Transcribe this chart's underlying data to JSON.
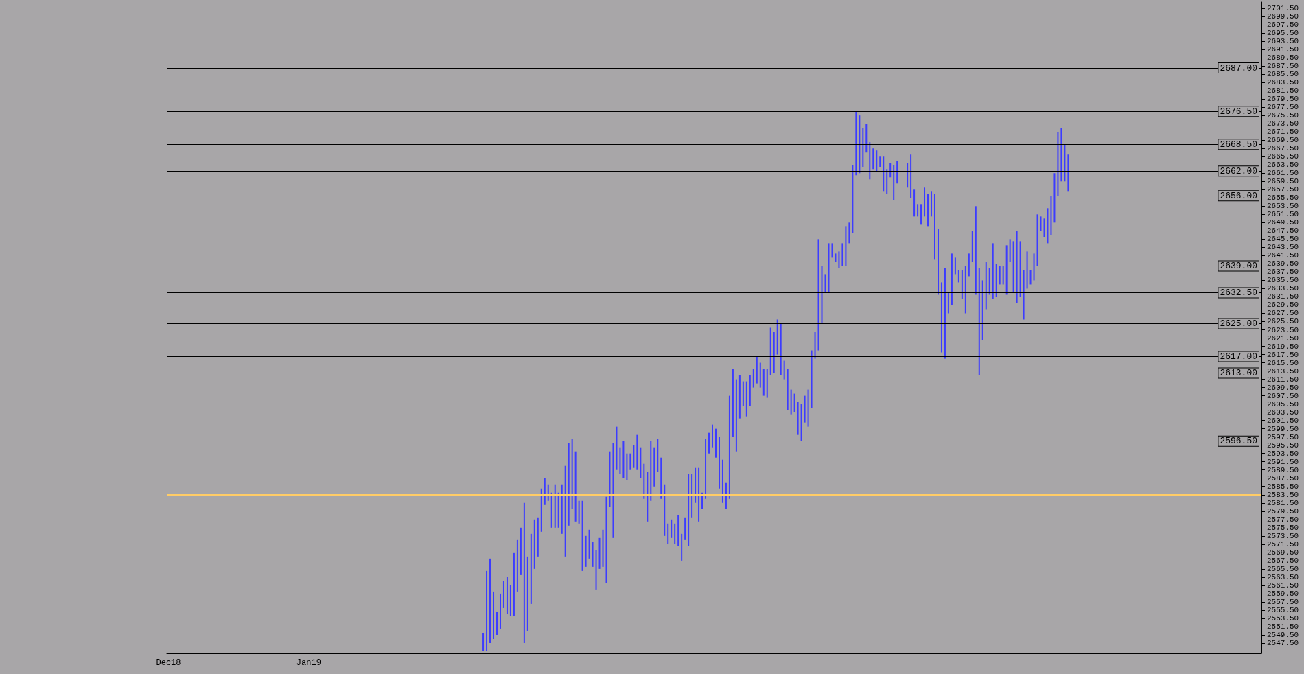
{
  "chart_data": {
    "type": "bar",
    "categories": [
      "Dec18",
      null,
      null,
      null,
      null,
      null,
      null,
      null,
      null,
      null,
      null,
      null,
      null,
      null,
      null,
      null,
      null,
      null,
      null,
      null,
      null,
      null,
      null,
      null,
      null,
      null,
      null,
      null,
      null,
      null,
      null,
      null,
      null,
      null,
      null,
      null,
      null,
      null,
      null,
      null,
      null,
      "Jan19",
      null,
      null,
      null,
      null,
      null,
      null,
      null,
      null,
      null,
      null,
      null,
      null,
      null,
      null,
      null,
      null,
      null,
      null,
      null,
      null,
      null,
      null,
      null,
      null,
      null,
      null,
      null,
      null,
      null,
      null,
      null,
      null,
      null,
      null,
      null,
      null,
      null,
      null,
      null,
      null,
      null,
      null,
      null,
      null,
      null,
      null,
      null,
      null,
      null,
      null,
      null,
      null,
      null,
      null,
      null,
      null,
      null,
      null,
      null,
      null,
      null,
      null,
      null,
      null,
      null,
      null,
      null,
      null,
      null,
      null,
      null,
      null,
      null,
      null,
      null,
      null,
      null,
      null,
      null,
      null,
      null,
      null,
      null,
      null,
      null,
      null,
      null,
      null,
      null,
      null,
      null,
      null,
      null,
      null,
      null,
      null,
      null,
      null,
      null,
      null,
      null,
      null,
      null,
      null,
      null,
      null,
      null,
      null,
      null,
      null,
      null,
      null,
      null,
      null,
      null,
      null,
      null,
      null,
      null,
      null,
      null,
      null,
      null,
      null,
      null,
      null,
      null,
      null,
      null,
      null,
      null,
      null,
      null,
      null,
      null,
      null,
      null,
      null,
      null,
      null,
      null,
      null,
      null,
      null,
      null,
      null,
      null,
      null,
      null,
      null,
      null,
      null,
      null,
      null,
      null,
      null,
      null,
      null,
      null,
      null,
      null,
      null,
      null,
      null,
      null,
      null,
      null,
      null,
      null,
      null,
      null,
      null,
      null,
      null,
      null,
      null,
      null,
      null,
      null,
      null,
      null,
      null,
      null,
      null,
      null,
      null,
      null,
      null,
      null,
      null,
      null,
      null,
      null,
      null,
      null,
      null,
      null,
      null,
      null,
      null,
      null,
      null,
      null,
      null,
      null,
      null,
      null,
      null,
      null,
      null,
      null,
      null,
      null,
      null,
      null,
      null,
      null,
      null,
      null,
      null,
      null,
      null,
      null,
      null,
      null,
      null,
      null,
      null,
      null,
      null,
      null,
      null,
      null,
      null,
      null,
      null,
      null,
      null,
      null,
      null,
      null,
      null,
      null,
      null,
      null,
      null,
      null,
      null,
      null,
      null,
      null,
      null,
      null,
      null,
      null,
      null,
      null,
      null,
      null,
      null,
      null,
      null,
      null,
      null,
      null,
      null,
      null,
      null,
      null,
      null,
      null,
      null,
      null,
      null,
      null,
      null,
      null,
      null
    ],
    "base": [
      null,
      null,
      null,
      null,
      null,
      null,
      null,
      null,
      null,
      null,
      null,
      null,
      null,
      null,
      null,
      null,
      null,
      null,
      null,
      null,
      null,
      null,
      null,
      null,
      null,
      null,
      null,
      null,
      null,
      null,
      null,
      null,
      null,
      null,
      null,
      null,
      null,
      null,
      null,
      null,
      null,
      null,
      null,
      null,
      null,
      null,
      null,
      null,
      null,
      null,
      null,
      null,
      null,
      null,
      null,
      null,
      null,
      null,
      null,
      null,
      null,
      null,
      null,
      null,
      null,
      null,
      null,
      null,
      null,
      null,
      null,
      null,
      null,
      null,
      null,
      null,
      null,
      null,
      null,
      null,
      null,
      null,
      null,
      null,
      null,
      null,
      null,
      null,
      null,
      null,
      null,
      null,
      2545.5,
      2545.5,
      2547.5,
      2548.5,
      2549.5,
      2551,
      2556,
      2554.5,
      2554,
      2554,
      2560,
      2564,
      2547.5,
      2550.5,
      2557,
      2565.5,
      2568.5,
      2574.5,
      2581,
      2582,
      2575.5,
      2575.5,
      2575.5,
      2574,
      2568.5,
      2576,
      2580,
      2577,
      2576.5,
      2565,
      2566,
      2568,
      2566,
      2560.5,
      2565.5,
      2566,
      2562,
      2580.5,
      2573,
      2589.5,
      2588.5,
      2587.5,
      2587,
      2589.5,
      2590,
      2589.5,
      2587.5,
      2582.5,
      2577,
      2582,
      2585.5,
      2589,
      2582.5,
      2573.5,
      2571.5,
      2573,
      2571.5,
      2571,
      2567.5,
      2572.5,
      2571,
      2578,
      2581.5,
      2577,
      2580,
      2582.5,
      2593.5,
      2595,
      2592.5,
      2585,
      2581.5,
      2580,
      2582.5,
      2597.5,
      2594,
      2602,
      2605,
      2602.5,
      2605,
      2609.5,
      2610.5,
      2609.5,
      2607.5,
      2607,
      2612.5,
      2613,
      2617.5,
      2612.5,
      2611.5,
      2604,
      2603,
      2603.5,
      2598,
      2596.5,
      2601,
      2600,
      2604.5,
      2616.5,
      2618.5,
      2625,
      2632.5,
      2632.5,
      2641,
      2640,
      2638.5,
      2639,
      2639,
      2644.5,
      2647,
      2661,
      2661.5,
      2663,
      2666.5,
      2660,
      2662.5,
      2662,
      2663,
      2657,
      2656.5,
      2660.5,
      2655,
      2659,
      null,
      null,
      2658,
      2655.5,
      2651,
      2651,
      2649,
      2651,
      2648.5,
      2651,
      2640.5,
      2632,
      2618,
      2616.5,
      2627.5,
      2629.5,
      2637,
      2635,
      2631,
      2627.5,
      2636.5,
      2640,
      2632,
      2612.5,
      2621,
      2628.5,
      2632,
      2631,
      2631.5,
      2634.5,
      2634.5,
      2632,
      2640,
      2632.5,
      2630,
      2631.5,
      2626,
      2633.5,
      2634.5,
      2635.5,
      2639,
      2647.5,
      2646,
      2644.5,
      2646.5,
      2649.5,
      2656,
      2659.5,
      2659.5,
      2657,
      null,
      null,
      null,
      null,
      null,
      null,
      null,
      null,
      null,
      null,
      null,
      null,
      null,
      null,
      null,
      null,
      null,
      null,
      null,
      null,
      null,
      null,
      null,
      null,
      null,
      null,
      null,
      null,
      null,
      null,
      null,
      null,
      null,
      null,
      null,
      null,
      null,
      null,
      null,
      null,
      null,
      null,
      null,
      null,
      null,
      null,
      null,
      null,
      null,
      null,
      null,
      null,
      null,
      null,
      null,
      null
    ],
    "values": [
      null,
      null,
      null,
      null,
      null,
      null,
      null,
      null,
      null,
      null,
      null,
      null,
      null,
      null,
      null,
      null,
      null,
      null,
      null,
      null,
      null,
      null,
      null,
      null,
      null,
      null,
      null,
      null,
      null,
      null,
      null,
      null,
      null,
      null,
      null,
      null,
      null,
      null,
      null,
      null,
      null,
      null,
      null,
      null,
      null,
      null,
      null,
      null,
      null,
      null,
      null,
      null,
      null,
      null,
      null,
      null,
      null,
      null,
      null,
      null,
      null,
      null,
      null,
      null,
      null,
      null,
      null,
      null,
      null,
      null,
      null,
      null,
      null,
      null,
      null,
      null,
      null,
      null,
      null,
      null,
      null,
      null,
      null,
      null,
      null,
      null,
      null,
      null,
      null,
      null,
      null,
      null,
      4.5,
      19.5,
      20.5,
      11.5,
      5.5,
      8.5,
      6.5,
      9,
      7.5,
      15.5,
      12.5,
      11.5,
      34,
      18,
      17,
      12,
      9.5,
      10.5,
      6.5,
      4,
      8.5,
      10.5,
      8.5,
      12,
      22,
      20,
      17,
      17,
      5.5,
      17,
      7.5,
      7,
      6,
      9.5,
      7.5,
      9,
      21,
      13.5,
      23,
      10.5,
      6.5,
      9,
      6.5,
      4,
      5.5,
      8.5,
      7.5,
      8.5,
      12,
      14.5,
      9.5,
      8,
      10,
      12.5,
      5,
      4.5,
      5,
      7.5,
      6.5,
      5.5,
      17.5,
      10.5,
      8.5,
      13,
      4,
      14.5,
      5,
      5.5,
      7,
      12.5,
      10.5,
      6.5,
      25,
      16.5,
      17.5,
      10.5,
      6,
      8.5,
      7.5,
      4.5,
      6.5,
      6,
      6.5,
      7,
      11.5,
      10,
      8.5,
      12.5,
      4.5,
      10,
      6,
      4.5,
      8,
      9,
      6.5,
      9,
      14,
      6.5,
      27,
      14,
      4.5,
      12,
      3.5,
      2,
      4,
      5.5,
      9.5,
      5,
      16.5,
      15.5,
      14,
      9.5,
      7,
      9,
      5,
      5,
      2.5,
      8.5,
      6,
      3.5,
      8.5,
      5.5,
      null,
      null,
      6,
      10.5,
      6.5,
      3,
      5,
      7,
      8,
      6,
      16,
      16,
      17,
      22,
      5,
      12.5,
      4,
      3,
      7,
      11.5,
      5.5,
      7.5,
      21.5,
      26,
      14.5,
      11.5,
      6.5,
      13.5,
      8,
      4.5,
      4.5,
      12,
      5.5,
      12.5,
      17.5,
      13.5,
      12,
      9,
      3.5,
      6.5,
      12.5,
      3.5,
      4.5,
      8.5,
      9.5,
      12,
      15.5,
      13,
      9,
      9,
      null,
      null,
      null,
      null,
      null,
      null,
      null,
      null,
      null,
      null,
      null,
      null,
      null,
      null,
      null,
      null,
      null,
      null,
      null,
      null,
      null,
      null,
      null,
      null,
      null,
      null,
      null,
      null,
      null,
      null,
      null,
      null,
      null,
      null,
      null,
      null,
      null,
      null,
      null,
      null,
      null,
      null,
      null,
      null,
      null,
      null,
      null,
      null,
      null,
      null,
      null,
      null,
      null,
      null,
      null,
      null
    ],
    "color": "#3c3cff",
    "ylim": [
      2545,
      2703
    ],
    "yticks": [
      {
        "value": 2547.5,
        "label": "2547.50"
      },
      {
        "value": 2549.5,
        "label": "2549.50"
      },
      {
        "value": 2551.5,
        "label": "2551.50"
      },
      {
        "value": 2553.5,
        "label": "2553.50"
      },
      {
        "value": 2555.5,
        "label": "2555.50"
      },
      {
        "value": 2557.5,
        "label": "2557.50"
      },
      {
        "value": 2559.5,
        "label": "2559.50"
      },
      {
        "value": 2561.5,
        "label": "2561.50"
      },
      {
        "value": 2563.5,
        "label": "2563.50"
      },
      {
        "value": 2565.5,
        "label": "2565.50"
      },
      {
        "value": 2567.5,
        "label": "2567.50"
      },
      {
        "value": 2569.5,
        "label": "2569.50"
      },
      {
        "value": 2571.5,
        "label": "2571.50"
      },
      {
        "value": 2573.5,
        "label": "2573.50"
      },
      {
        "value": 2575.5,
        "label": "2575.50"
      },
      {
        "value": 2577.5,
        "label": "2577.50"
      },
      {
        "value": 2579.5,
        "label": "2579.50"
      },
      {
        "value": 2581.5,
        "label": "2581.50"
      },
      {
        "value": 2583.5,
        "label": "2583.50"
      },
      {
        "value": 2585.5,
        "label": "2585.50"
      },
      {
        "value": 2587.5,
        "label": "2587.50"
      },
      {
        "value": 2589.5,
        "label": "2589.50"
      },
      {
        "value": 2591.5,
        "label": "2591.50"
      },
      {
        "value": 2593.5,
        "label": "2593.50"
      },
      {
        "value": 2595.5,
        "label": "2595.50"
      },
      {
        "value": 2597.5,
        "label": "2597.50"
      },
      {
        "value": 2599.5,
        "label": "2599.50"
      },
      {
        "value": 2601.5,
        "label": "2601.50"
      },
      {
        "value": 2603.5,
        "label": "2603.50"
      },
      {
        "value": 2605.5,
        "label": "2605.50"
      },
      {
        "value": 2607.5,
        "label": "2607.50"
      },
      {
        "value": 2609.5,
        "label": "2609.50"
      },
      {
        "value": 2611.5,
        "label": "2611.50"
      },
      {
        "value": 2613.5,
        "label": "2613.50"
      },
      {
        "value": 2615.5,
        "label": "2615.50"
      },
      {
        "value": 2617.5,
        "label": "2617.50"
      },
      {
        "value": 2619.5,
        "label": "2619.50"
      },
      {
        "value": 2621.5,
        "label": "2621.50"
      },
      {
        "value": 2623.5,
        "label": "2623.50"
      },
      {
        "value": 2625.5,
        "label": "2625.50"
      },
      {
        "value": 2627.5,
        "label": "2627.50"
      },
      {
        "value": 2629.5,
        "label": "2629.50"
      },
      {
        "value": 2631.5,
        "label": "2631.50"
      },
      {
        "value": 2633.5,
        "label": "2633.50"
      },
      {
        "value": 2635.5,
        "label": "2635.50"
      },
      {
        "value": 2637.5,
        "label": "2637.50"
      },
      {
        "value": 2639.5,
        "label": "2639.50"
      },
      {
        "value": 2641.5,
        "label": "2641.50"
      },
      {
        "value": 2643.5,
        "label": "2643.50"
      },
      {
        "value": 2645.5,
        "label": "2645.50"
      },
      {
        "value": 2647.5,
        "label": "2647.50"
      },
      {
        "value": 2649.5,
        "label": "2649.50"
      },
      {
        "value": 2651.5,
        "label": "2651.50"
      },
      {
        "value": 2653.5,
        "label": "2653.50"
      },
      {
        "value": 2655.5,
        "label": "2655.50"
      },
      {
        "value": 2657.5,
        "label": "2657.50"
      },
      {
        "value": 2659.5,
        "label": "2659.50"
      },
      {
        "value": 2661.5,
        "label": "2661.50"
      },
      {
        "value": 2663.5,
        "label": "2663.50"
      },
      {
        "value": 2665.5,
        "label": "2665.50"
      },
      {
        "value": 2667.5,
        "label": "2667.50"
      },
      {
        "value": 2669.5,
        "label": "2669.50"
      },
      {
        "value": 2671.5,
        "label": "2671.50"
      },
      {
        "value": 2673.5,
        "label": "2673.50"
      },
      {
        "value": 2675.5,
        "label": "2675.50"
      },
      {
        "value": 2677.5,
        "label": "2677.50"
      },
      {
        "value": 2679.5,
        "label": "2679.50"
      },
      {
        "value": 2681.5,
        "label": "2681.50"
      },
      {
        "value": 2683.5,
        "label": "2683.50"
      },
      {
        "value": 2685.5,
        "label": "2685.50"
      },
      {
        "value": 2687.5,
        "label": "2687.50"
      },
      {
        "value": 2689.5,
        "label": "2689.50"
      },
      {
        "value": 2691.5,
        "label": "2691.50"
      },
      {
        "value": 2693.5,
        "label": "2693.50"
      },
      {
        "value": 2695.5,
        "label": "2695.50"
      },
      {
        "value": 2697.5,
        "label": "2697.50"
      },
      {
        "value": 2699.5,
        "label": "2699.50"
      },
      {
        "value": 2701.5,
        "label": "2701.50"
      }
    ],
    "ref_lines": [
      {
        "axis": "y",
        "value": 2687,
        "label": "2687.00",
        "color": "#000000"
      },
      {
        "axis": "y",
        "value": 2676.5,
        "label": "2676.50",
        "color": "#000000"
      },
      {
        "axis": "y",
        "value": 2668.5,
        "label": "2668.50",
        "color": "#000000"
      },
      {
        "axis": "y",
        "value": 2662,
        "label": "2662.00",
        "color": "#000000"
      },
      {
        "axis": "y",
        "value": 2656,
        "label": "2656.00",
        "color": "#000000"
      },
      {
        "axis": "y",
        "value": 2639,
        "label": "2639.00",
        "color": "#000000"
      },
      {
        "axis": "y",
        "value": 2632.5,
        "label": "2632.50",
        "color": "#000000"
      },
      {
        "axis": "y",
        "value": 2625,
        "label": "2625.00",
        "color": "#000000"
      },
      {
        "axis": "y",
        "value": 2617,
        "label": "2617.00",
        "color": "#000000"
      },
      {
        "axis": "y",
        "value": 2613,
        "label": "2613.00",
        "color": "#000000"
      },
      {
        "axis": "y",
        "value": 2596.5,
        "label": "2596.50",
        "color": "#000000"
      },
      {
        "axis": "y",
        "value": 2583.5,
        "label": null,
        "color": "#ffcc66"
      }
    ],
    "grid": false
  }
}
